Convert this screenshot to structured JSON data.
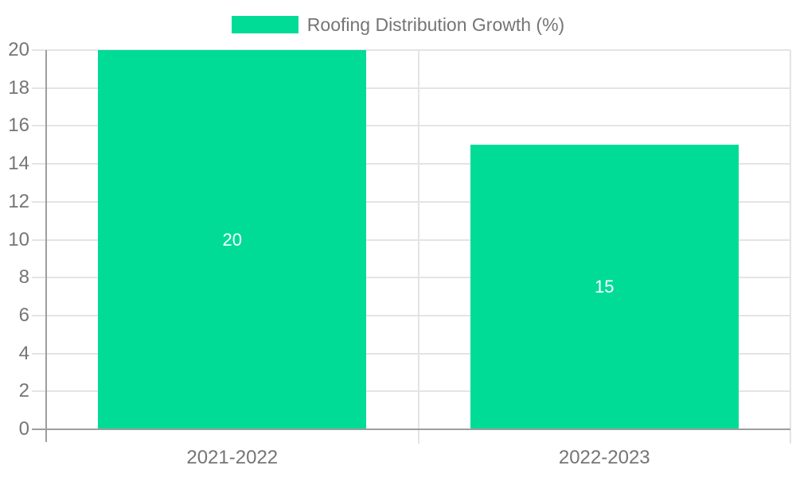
{
  "chart_data": {
    "type": "bar",
    "title": "",
    "categories": [
      "2021-2022",
      "2022-2023"
    ],
    "series": [
      {
        "name": "Roofing Distribution Growth (%)",
        "values": [
          20,
          15
        ],
        "color": "#00DC96"
      }
    ],
    "data_labels": [
      "20",
      "15"
    ],
    "xlabel": "",
    "ylabel": "",
    "ylim": [
      0,
      20
    ],
    "yticks": [
      0,
      2,
      4,
      6,
      8,
      10,
      12,
      14,
      16,
      18,
      20
    ],
    "grid": true,
    "legend_position": "top"
  },
  "legend": {
    "label": "Roofing Distribution Growth (%)",
    "swatch_color": "#00DC96"
  },
  "colors": {
    "bar": "#00DC96",
    "axis_line": "#9e9e9e",
    "gridline": "#e4e4e4",
    "tick_text": "#757575",
    "data_label": "#ffffff",
    "background": "#ffffff"
  }
}
